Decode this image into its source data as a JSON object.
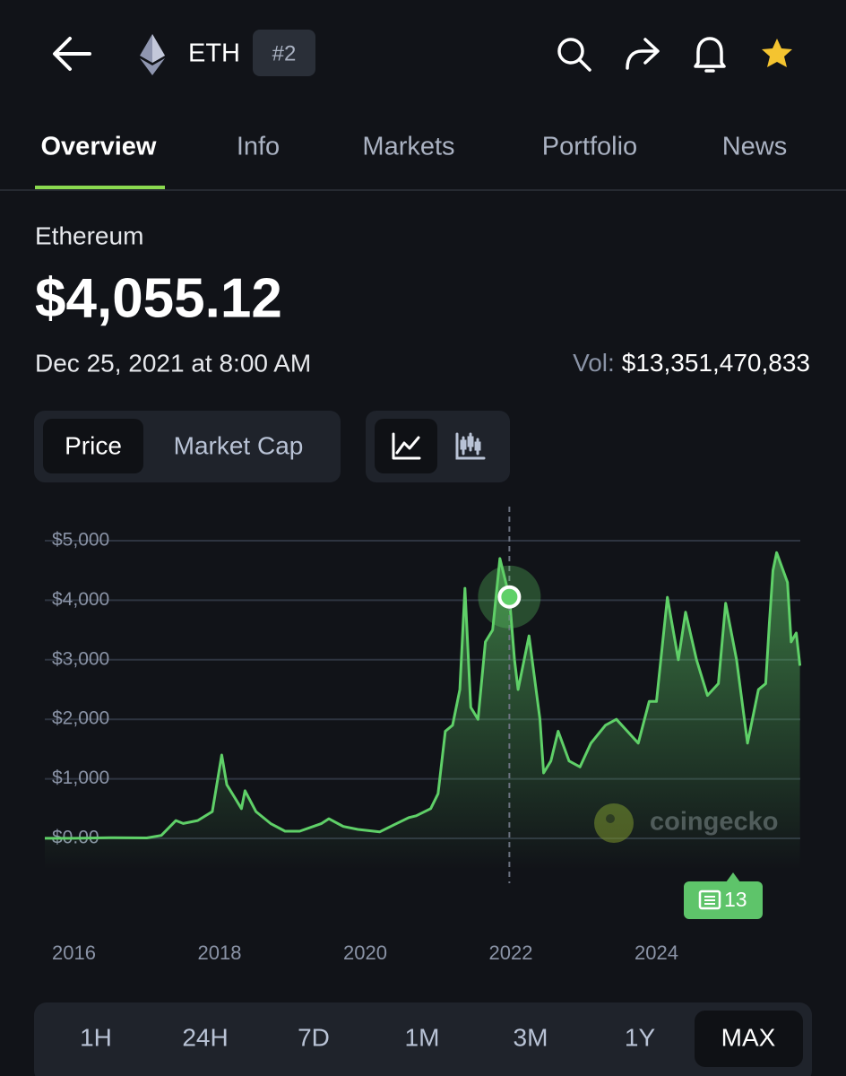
{
  "header": {
    "symbol": "ETH",
    "rank": "#2"
  },
  "tabs": [
    "Overview",
    "Info",
    "Markets",
    "Portfolio",
    "News"
  ],
  "coin": {
    "name": "Ethereum",
    "price": "$4,055.12",
    "date": "Dec 25, 2021 at 8:00 AM",
    "volume_label": "Vol:",
    "volume": "$13,351,470,833"
  },
  "chart_toggle": [
    "Price",
    "Market Cap"
  ],
  "chart_data": {
    "type": "area",
    "color": "#5fd068",
    "grid": true,
    "xlim": [
      2015.6,
      2026.0
    ],
    "xticks": [
      2016,
      2018,
      2020,
      2022,
      2024
    ],
    "ylim": [
      0,
      5000
    ],
    "yticks": [
      {
        "value": 0,
        "label": "$0.00"
      },
      {
        "value": 1000,
        "label": "$1,000"
      },
      {
        "value": 2000,
        "label": "$2,000"
      },
      {
        "value": 3000,
        "label": "$3,000"
      },
      {
        "value": 4000,
        "label": "$4,000"
      },
      {
        "value": 5000,
        "label": "$5,000"
      }
    ],
    "x": [
      2015.6,
      2016.0,
      2016.5,
      2017.0,
      2017.2,
      2017.4,
      2017.5,
      2017.7,
      2017.9,
      2018.03,
      2018.1,
      2018.2,
      2018.3,
      2018.35,
      2018.5,
      2018.7,
      2018.9,
      2019.1,
      2019.4,
      2019.5,
      2019.7,
      2019.9,
      2020.2,
      2020.4,
      2020.6,
      2020.7,
      2020.9,
      2021.0,
      2021.1,
      2021.2,
      2021.3,
      2021.37,
      2021.45,
      2021.55,
      2021.65,
      2021.75,
      2021.85,
      2021.98,
      2022.05,
      2022.1,
      2022.25,
      2022.4,
      2022.45,
      2022.55,
      2022.65,
      2022.8,
      2022.95,
      2023.1,
      2023.3,
      2023.45,
      2023.6,
      2023.75,
      2023.9,
      2024.0,
      2024.15,
      2024.3,
      2024.4,
      2024.55,
      2024.7,
      2024.85,
      2024.95,
      2025.1,
      2025.25,
      2025.4,
      2025.5,
      2025.55,
      2025.6,
      2025.65,
      2025.8,
      2025.85,
      2025.92,
      2025.97
    ],
    "values": [
      1,
      1,
      12,
      8,
      50,
      300,
      250,
      300,
      450,
      1400,
      900,
      700,
      500,
      800,
      450,
      250,
      120,
      120,
      250,
      330,
      200,
      150,
      110,
      230,
      350,
      380,
      500,
      750,
      1800,
      1900,
      2500,
      4200,
      2200,
      2000,
      3300,
      3500,
      4700,
      4055,
      3000,
      2500,
      3400,
      2000,
      1100,
      1300,
      1800,
      1300,
      1200,
      1600,
      1900,
      2000,
      1800,
      1600,
      2300,
      2300,
      4050,
      3000,
      3800,
      3000,
      2400,
      2600,
      3950,
      3000,
      1600,
      2500,
      2600,
      3600,
      4500,
      4800,
      4300,
      3300,
      3450,
      2900
    ],
    "selected": {
      "x": 2021.98,
      "value": 4055.12
    },
    "watermark": "coingecko",
    "news_count": "13"
  },
  "timeframes": [
    "1H",
    "24H",
    "7D",
    "1M",
    "3M",
    "1Y",
    "MAX"
  ]
}
